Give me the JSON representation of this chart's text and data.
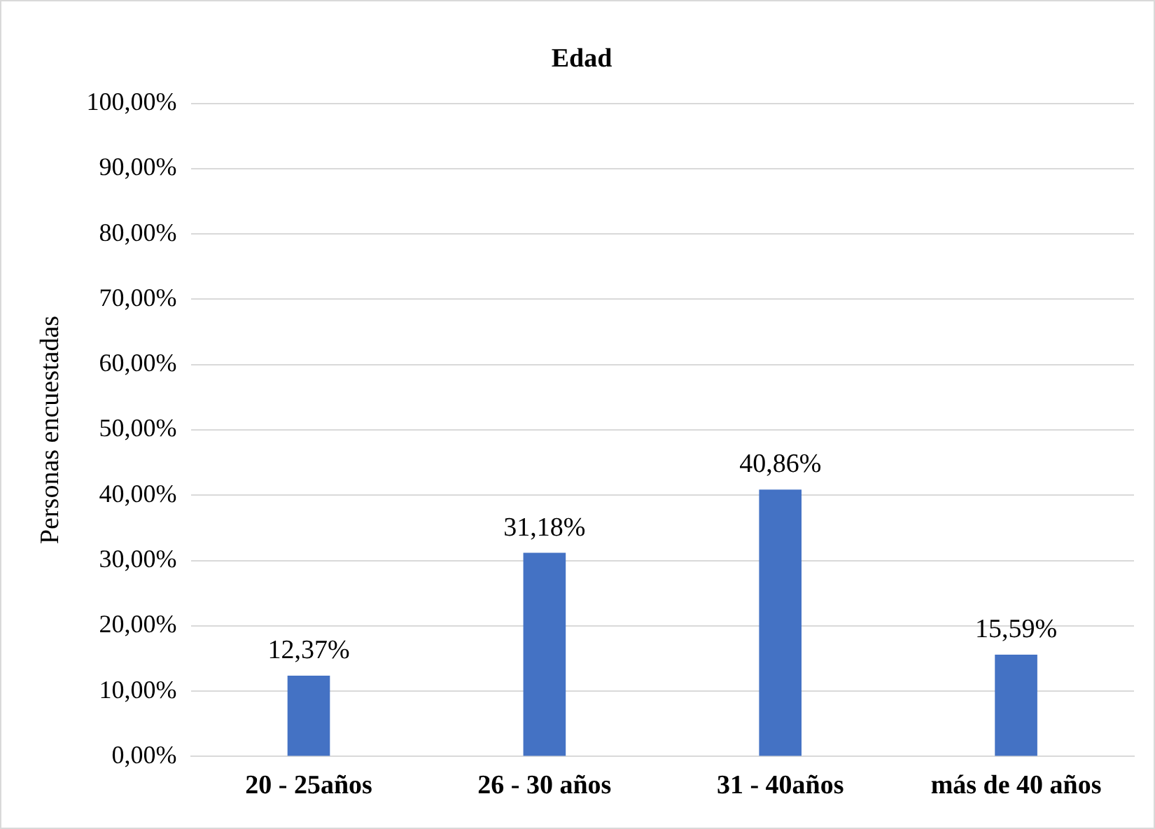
{
  "chart_data": {
    "type": "bar",
    "title": "Edad",
    "ylabel": "Personas encuestadas",
    "categories": [
      "20 - 25años",
      "26 - 30 años",
      "31 - 40años",
      "más de 40 años"
    ],
    "values": [
      12.37,
      31.18,
      40.86,
      15.59
    ],
    "color": "#4472c4",
    "value_labels": [
      "12,37%",
      "31,18%",
      "40,86%",
      "15,59%"
    ],
    "ylim": [
      0,
      100
    ],
    "yticks": [
      {
        "value": 0,
        "label": "0,00%"
      },
      {
        "value": 10,
        "label": "10,00%"
      },
      {
        "value": 20,
        "label": "20,00%"
      },
      {
        "value": 30,
        "label": "30,00%"
      },
      {
        "value": 40,
        "label": "40,00%"
      },
      {
        "value": 50,
        "label": "50,00%"
      },
      {
        "value": 60,
        "label": "60,00%"
      },
      {
        "value": 70,
        "label": "70,00%"
      },
      {
        "value": 80,
        "label": "80,00%"
      },
      {
        "value": 90,
        "label": "90,00%"
      },
      {
        "value": 100,
        "label": "100,00%"
      }
    ],
    "grid": "y",
    "legend": false
  }
}
